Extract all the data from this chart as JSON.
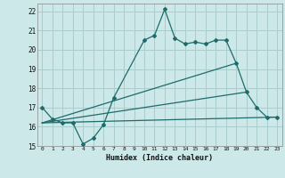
{
  "xlabel": "Humidex (Indice chaleur)",
  "xlim": [
    -0.5,
    23.5
  ],
  "ylim": [
    15,
    22.4
  ],
  "xticks": [
    0,
    1,
    2,
    3,
    4,
    5,
    6,
    7,
    8,
    9,
    10,
    11,
    12,
    13,
    14,
    15,
    16,
    17,
    18,
    19,
    20,
    21,
    22,
    23
  ],
  "yticks": [
    15,
    16,
    17,
    18,
    19,
    20,
    21,
    22
  ],
  "bg_color": "#cce8e8",
  "grid_color": "#aacccc",
  "line_color": "#1e6b6b",
  "lines": [
    {
      "x": [
        0,
        1,
        2,
        3,
        4,
        5,
        6,
        7,
        10,
        11,
        12,
        13,
        14,
        15,
        16,
        17,
        18,
        19,
        20,
        21,
        22,
        23
      ],
      "y": [
        17.0,
        16.4,
        16.2,
        16.2,
        15.1,
        15.4,
        16.1,
        17.5,
        20.5,
        20.75,
        22.1,
        20.6,
        20.3,
        20.4,
        20.3,
        20.5,
        20.5,
        19.3,
        17.8,
        17.0,
        16.5,
        16.5
      ],
      "markers": true
    },
    {
      "x": [
        0,
        19
      ],
      "y": [
        16.2,
        19.3
      ],
      "markers": false
    },
    {
      "x": [
        0,
        20
      ],
      "y": [
        16.2,
        17.8
      ],
      "markers": false
    },
    {
      "x": [
        0,
        23
      ],
      "y": [
        16.2,
        16.5
      ],
      "markers": false
    }
  ]
}
